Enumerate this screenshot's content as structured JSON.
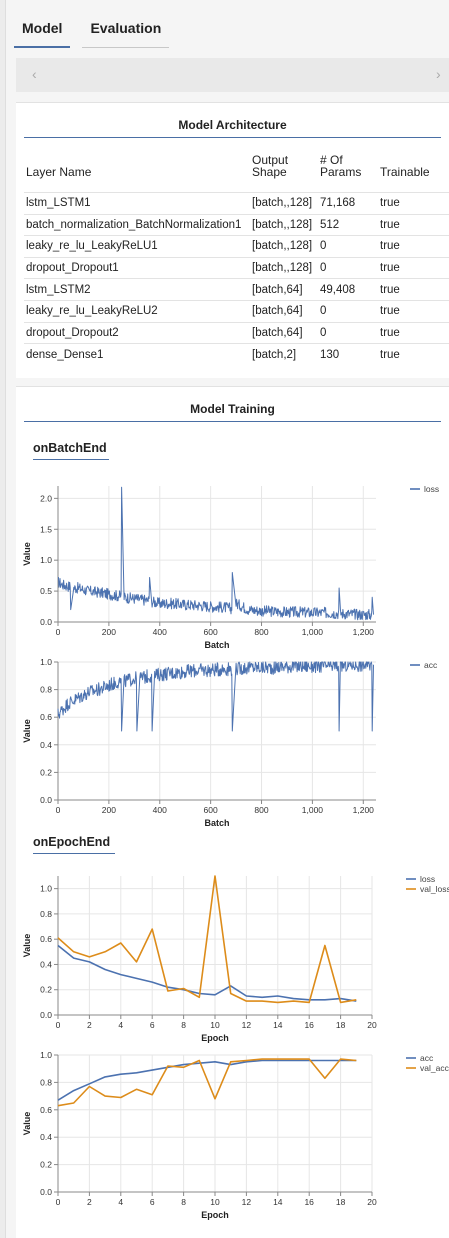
{
  "tabs": [
    {
      "label": "Model",
      "active": true
    },
    {
      "label": "Evaluation",
      "active": false
    }
  ],
  "nav": {
    "prev_icon": "‹",
    "next_icon": "›"
  },
  "architecture": {
    "title": "Model Architecture",
    "columns": [
      "Layer Name",
      "Output Shape",
      "# Of Params",
      "Trainable"
    ],
    "rows": [
      [
        "lstm_LSTM1",
        "[batch,,128]",
        "71,168",
        "true"
      ],
      [
        "batch_normalization_BatchNormalization1",
        "[batch,,128]",
        "512",
        "true"
      ],
      [
        "leaky_re_lu_LeakyReLU1",
        "[batch,,128]",
        "0",
        "true"
      ],
      [
        "dropout_Dropout1",
        "[batch,,128]",
        "0",
        "true"
      ],
      [
        "lstm_LSTM2",
        "[batch,64]",
        "49,408",
        "true"
      ],
      [
        "leaky_re_lu_LeakyReLU2",
        "[batch,64]",
        "0",
        "true"
      ],
      [
        "dropout_Dropout2",
        "[batch,64]",
        "0",
        "true"
      ],
      [
        "dense_Dense1",
        "[batch,2]",
        "130",
        "true"
      ]
    ]
  },
  "training": {
    "title": "Model Training",
    "batch_section": "onBatchEnd",
    "epoch_section": "onEpochEnd"
  },
  "colors": {
    "blue": "#4c72b0",
    "orange": "#dd8c1a",
    "accent": "#4a6fa5"
  },
  "chart_data": [
    {
      "type": "line",
      "xlabel": "Batch",
      "ylabel": "Value",
      "xlim": [
        0,
        1250
      ],
      "ylim": [
        0,
        2.2
      ],
      "xticks": [
        0,
        200,
        400,
        600,
        800,
        1000,
        1200
      ],
      "xtick_labels": [
        "0",
        "200",
        "400",
        "600",
        "800",
        "1,000",
        "1,200"
      ],
      "yticks": [
        0,
        0.5,
        1.0,
        1.5,
        2.0
      ],
      "ytick_labels": [
        "0.0",
        "0.5",
        "1.0",
        "1.5",
        "2.0"
      ],
      "legend": "top-right",
      "series": [
        {
          "name": "loss",
          "color": "#4c72b0",
          "sampled": true,
          "x": [
            0,
            20,
            40,
            50,
            60,
            80,
            120,
            160,
            200,
            240,
            250,
            260,
            300,
            350,
            360,
            370,
            400,
            450,
            500,
            550,
            600,
            650,
            680,
            685,
            700,
            750,
            800,
            850,
            900,
            950,
            1000,
            1050,
            1100,
            1105,
            1110,
            1150,
            1200,
            1230,
            1235,
            1240
          ],
          "y": [
            0.65,
            0.6,
            0.58,
            0.2,
            0.55,
            0.55,
            0.5,
            0.48,
            0.45,
            0.42,
            2.18,
            0.4,
            0.38,
            0.35,
            0.72,
            0.33,
            0.3,
            0.3,
            0.28,
            0.27,
            0.25,
            0.24,
            0.22,
            0.8,
            0.3,
            0.2,
            0.18,
            0.17,
            0.16,
            0.16,
            0.15,
            0.15,
            0.14,
            0.55,
            0.14,
            0.13,
            0.12,
            0.12,
            0.4,
            0.12
          ]
        }
      ]
    },
    {
      "type": "line",
      "xlabel": "Batch",
      "ylabel": "Value",
      "xlim": [
        0,
        1250
      ],
      "ylim": [
        0,
        1.0
      ],
      "xticks": [
        0,
        200,
        400,
        600,
        800,
        1000,
        1200
      ],
      "xtick_labels": [
        "0",
        "200",
        "400",
        "600",
        "800",
        "1,000",
        "1,200"
      ],
      "yticks": [
        0,
        0.2,
        0.4,
        0.6,
        0.8,
        1.0
      ],
      "ytick_labels": [
        "0.0",
        "0.2",
        "0.4",
        "0.6",
        "0.8",
        "1.0"
      ],
      "legend": "top-right",
      "series": [
        {
          "name": "acc",
          "color": "#4c72b0",
          "sampled": true,
          "x": [
            0,
            20,
            40,
            60,
            80,
            100,
            120,
            160,
            200,
            240,
            250,
            260,
            300,
            310,
            320,
            360,
            370,
            380,
            400,
            450,
            500,
            550,
            600,
            650,
            680,
            685,
            700,
            750,
            800,
            850,
            900,
            950,
            1000,
            1050,
            1100,
            1105,
            1110,
            1150,
            1200,
            1230,
            1235,
            1240
          ],
          "y": [
            0.62,
            0.66,
            0.7,
            0.72,
            0.74,
            0.76,
            0.78,
            0.8,
            0.83,
            0.86,
            0.5,
            0.86,
            0.88,
            0.5,
            0.88,
            0.9,
            0.5,
            0.9,
            0.91,
            0.92,
            0.93,
            0.94,
            0.94,
            0.95,
            0.95,
            0.5,
            0.95,
            0.96,
            0.96,
            0.96,
            0.97,
            0.97,
            0.97,
            0.97,
            0.97,
            0.5,
            0.97,
            0.98,
            0.98,
            0.98,
            0.5,
            0.98
          ]
        }
      ]
    },
    {
      "type": "line",
      "xlabel": "Epoch",
      "ylabel": "Value",
      "xlim": [
        0,
        20
      ],
      "ylim": [
        0,
        1.1
      ],
      "xticks": [
        0,
        2,
        4,
        6,
        8,
        10,
        12,
        14,
        16,
        18,
        20
      ],
      "xtick_labels": [
        "0",
        "2",
        "4",
        "6",
        "8",
        "10",
        "12",
        "14",
        "16",
        "18",
        "20"
      ],
      "yticks": [
        0,
        0.2,
        0.4,
        0.6,
        0.8,
        1.0
      ],
      "ytick_labels": [
        "0.0",
        "0.2",
        "0.4",
        "0.6",
        "0.8",
        "1.0"
      ],
      "legend": "top-right",
      "series": [
        {
          "name": "loss",
          "color": "#4c72b0",
          "x": [
            0,
            1,
            2,
            3,
            4,
            5,
            6,
            7,
            8,
            9,
            10,
            11,
            12,
            13,
            14,
            15,
            16,
            17,
            18,
            19
          ],
          "y": [
            0.55,
            0.45,
            0.42,
            0.36,
            0.32,
            0.29,
            0.26,
            0.22,
            0.2,
            0.17,
            0.16,
            0.23,
            0.15,
            0.14,
            0.15,
            0.13,
            0.12,
            0.12,
            0.13,
            0.11
          ]
        },
        {
          "name": "val_loss",
          "color": "#dd8c1a",
          "x": [
            0,
            1,
            2,
            3,
            4,
            5,
            6,
            7,
            8,
            9,
            10,
            11,
            12,
            13,
            14,
            15,
            16,
            17,
            18,
            19
          ],
          "y": [
            0.61,
            0.5,
            0.46,
            0.5,
            0.57,
            0.42,
            0.68,
            0.19,
            0.21,
            0.14,
            1.1,
            0.17,
            0.11,
            0.11,
            0.1,
            0.11,
            0.1,
            0.55,
            0.1,
            0.12
          ]
        }
      ]
    },
    {
      "type": "line",
      "xlabel": "Epoch",
      "ylabel": "Value",
      "xlim": [
        0,
        20
      ],
      "ylim": [
        0,
        1.0
      ],
      "xticks": [
        0,
        2,
        4,
        6,
        8,
        10,
        12,
        14,
        16,
        18,
        20
      ],
      "xtick_labels": [
        "0",
        "2",
        "4",
        "6",
        "8",
        "10",
        "12",
        "14",
        "16",
        "18",
        "20"
      ],
      "yticks": [
        0,
        0.2,
        0.4,
        0.6,
        0.8,
        1.0
      ],
      "ytick_labels": [
        "0.0",
        "0.2",
        "0.4",
        "0.6",
        "0.8",
        "1.0"
      ],
      "legend": "top-right",
      "series": [
        {
          "name": "acc",
          "color": "#4c72b0",
          "x": [
            0,
            1,
            2,
            3,
            4,
            5,
            6,
            7,
            8,
            9,
            10,
            11,
            12,
            13,
            14,
            15,
            16,
            17,
            18,
            19
          ],
          "y": [
            0.67,
            0.74,
            0.79,
            0.84,
            0.86,
            0.87,
            0.89,
            0.91,
            0.93,
            0.94,
            0.95,
            0.93,
            0.95,
            0.96,
            0.96,
            0.96,
            0.96,
            0.96,
            0.96,
            0.96
          ]
        },
        {
          "name": "val_acc",
          "color": "#dd8c1a",
          "x": [
            0,
            1,
            2,
            3,
            4,
            5,
            6,
            7,
            8,
            9,
            10,
            11,
            12,
            13,
            14,
            15,
            16,
            17,
            18,
            19
          ],
          "y": [
            0.63,
            0.65,
            0.77,
            0.7,
            0.69,
            0.75,
            0.71,
            0.92,
            0.91,
            0.96,
            0.68,
            0.95,
            0.96,
            0.97,
            0.97,
            0.97,
            0.97,
            0.83,
            0.97,
            0.96
          ]
        }
      ]
    }
  ]
}
